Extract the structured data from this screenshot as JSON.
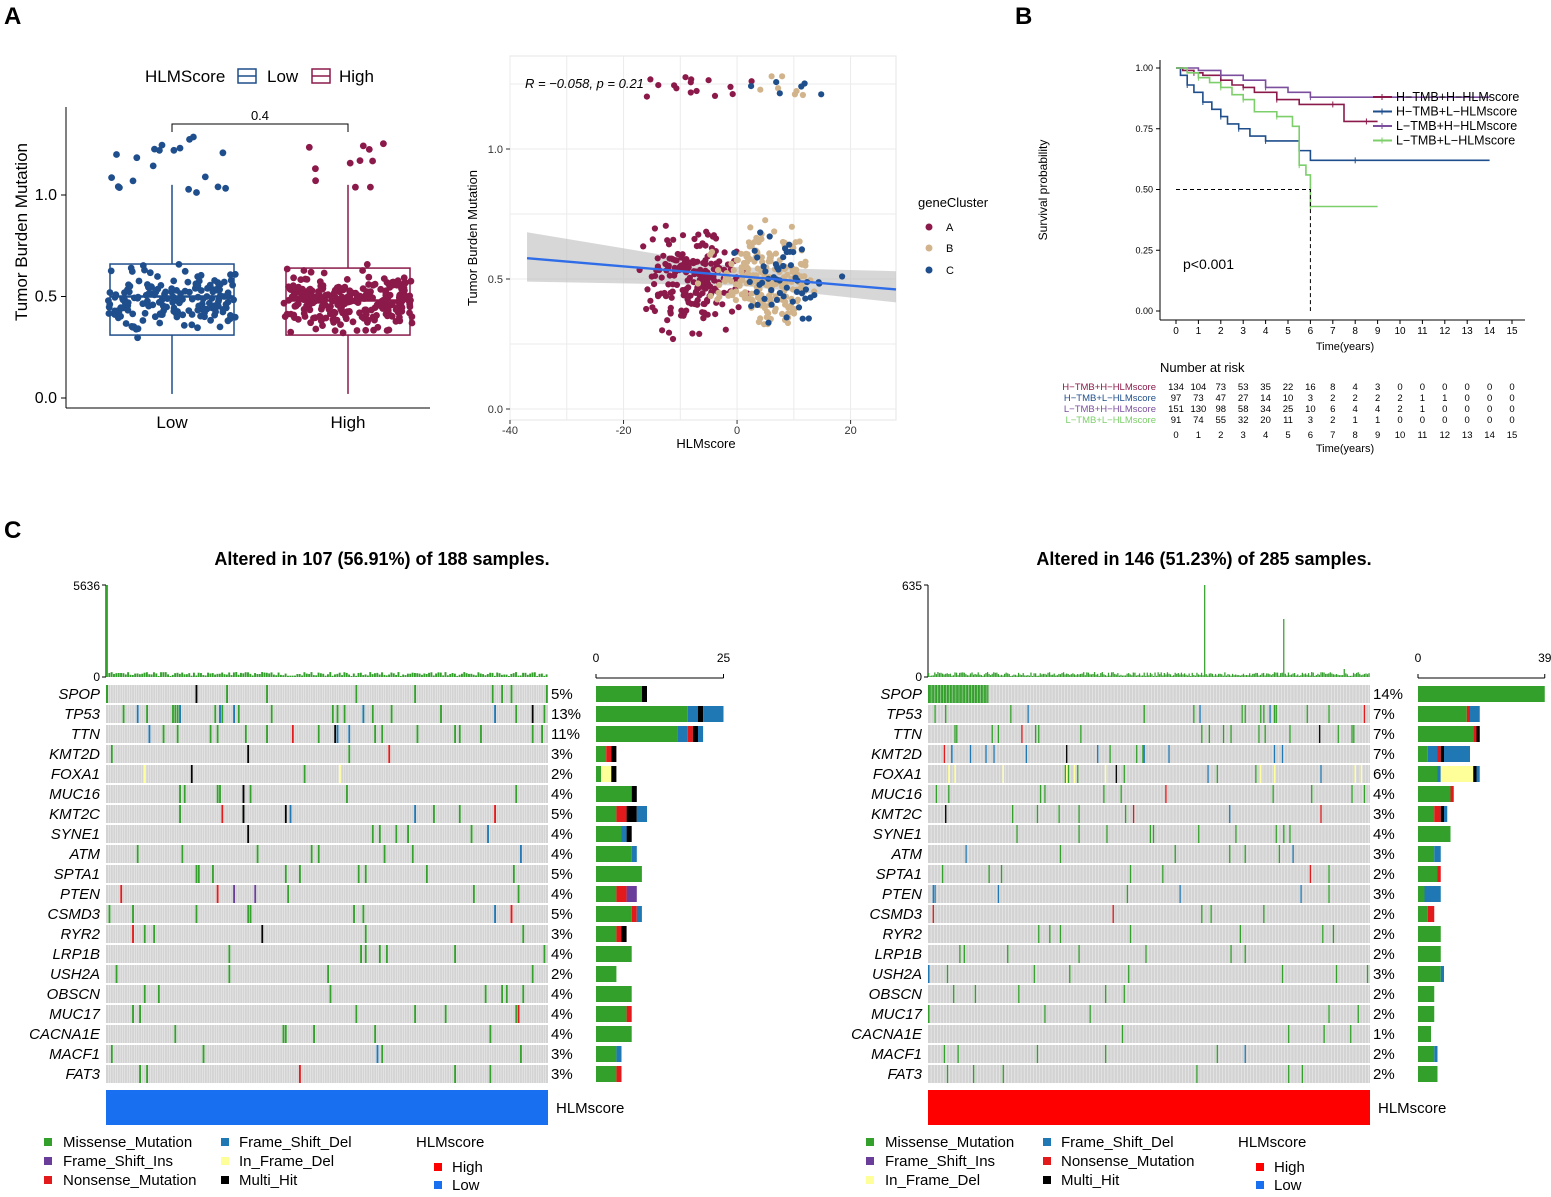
{
  "panel_labels": {
    "a": "A",
    "b": "B",
    "c": "C"
  },
  "colors": {
    "low": "#1f4e8c",
    "high": "#8b1a4a",
    "clusterA": "#8b1a4a",
    "clusterB": "#d2b48c",
    "clusterC": "#1f4e8c",
    "km1": "#8b1a4a",
    "km2": "#1f4e8c",
    "km3": "#7b4f9e",
    "km4": "#7ccf6a",
    "missense": "#33a02c",
    "frameshift_del": "#1f78b4",
    "frameshift_ins": "#6a3d9a",
    "nonsense": "#e31a1c",
    "inframe_del": "#ffff99",
    "multi_hit": "#000000",
    "hlm_high": "#ff0000",
    "hlm_low": "#1870f0",
    "grid_bg": "#d3d3d3"
  },
  "chart_data": [
    {
      "type": "box",
      "id": "A1",
      "legend_title": "HLMScore",
      "legend": [
        "Low",
        "High"
      ],
      "categories": [
        "Low",
        "High"
      ],
      "ylabel": "Tumor Burden Mutation",
      "ylim": [
        -0.05,
        1.38
      ],
      "yticks": [
        "0.0",
        "0.5",
        "1.0"
      ],
      "pvalue": "0.4",
      "boxes": [
        {
          "name": "Low",
          "q1": 0.31,
          "median": 0.5,
          "q3": 0.66,
          "lower": 0.02,
          "upper": 1.05
        },
        {
          "name": "High",
          "q1": 0.31,
          "median": 0.48,
          "q3": 0.64,
          "lower": 0.02,
          "upper": 1.05
        }
      ]
    },
    {
      "type": "scatter",
      "id": "A2",
      "xlabel": "HLMscore",
      "ylabel": "Tumor Burden Mutation",
      "xlim": [
        -40,
        28
      ],
      "ylim": [
        -0.05,
        1.32
      ],
      "xticks": [
        "-40",
        "-20",
        "0",
        "20"
      ],
      "yticks": [
        "0.0",
        "0.5",
        "1.0"
      ],
      "annotation": "R = −0.058, p = 0.21",
      "legend_title": "geneCluster",
      "legend": [
        "A",
        "B",
        "C"
      ],
      "regression": {
        "x0": -37,
        "y0": 0.58,
        "x1": 28,
        "y1": 0.46
      }
    },
    {
      "type": "line",
      "id": "B",
      "xlabel": "Time(years)",
      "ylabel": "Survival probability",
      "xticks": [
        "0",
        "1",
        "2",
        "3",
        "4",
        "5",
        "6",
        "7",
        "8",
        "9",
        "10",
        "11",
        "12",
        "13",
        "14",
        "15"
      ],
      "yticks": [
        "0.00",
        "0.25",
        "0.50",
        "0.75",
        "1.00"
      ],
      "xlim": [
        0,
        15
      ],
      "ylim": [
        0,
        1
      ],
      "pvalue": "p<0.001",
      "series": [
        {
          "name": "H−TMB+H−HLMscore",
          "points": [
            [
              0,
              1
            ],
            [
              0.3,
              0.99
            ],
            [
              0.8,
              0.98
            ],
            [
              1.2,
              0.97
            ],
            [
              2,
              0.95
            ],
            [
              2.5,
              0.93
            ],
            [
              3,
              0.92
            ],
            [
              3.5,
              0.9
            ],
            [
              4.5,
              0.87
            ],
            [
              5.5,
              0.85
            ],
            [
              7,
              0.85
            ],
            [
              7.5,
              0.78
            ],
            [
              8.5,
              0.78
            ],
            [
              9,
              0.78
            ]
          ]
        },
        {
          "name": "H−TMB+L−HLMscore",
          "points": [
            [
              0,
              1
            ],
            [
              0.2,
              0.97
            ],
            [
              0.5,
              0.93
            ],
            [
              0.8,
              0.9
            ],
            [
              1.2,
              0.86
            ],
            [
              1.6,
              0.83
            ],
            [
              2,
              0.8
            ],
            [
              2.3,
              0.77
            ],
            [
              2.8,
              0.75
            ],
            [
              3.3,
              0.72
            ],
            [
              4,
              0.7
            ],
            [
              5,
              0.7
            ],
            [
              5.5,
              0.66
            ],
            [
              6,
              0.62
            ],
            [
              8,
              0.62
            ],
            [
              14,
              0.62
            ]
          ]
        },
        {
          "name": "L−TMB+H−HLMscore",
          "points": [
            [
              0,
              1
            ],
            [
              1,
              0.99
            ],
            [
              2,
              0.97
            ],
            [
              3,
              0.95
            ],
            [
              4,
              0.92
            ],
            [
              5,
              0.9
            ],
            [
              6,
              0.88
            ],
            [
              14,
              0.88
            ]
          ]
        },
        {
          "name": "L−TMB+L−HLMscore",
          "points": [
            [
              0,
              1
            ],
            [
              0.5,
              0.98
            ],
            [
              1,
              0.96
            ],
            [
              1.5,
              0.94
            ],
            [
              2,
              0.92
            ],
            [
              2.5,
              0.89
            ],
            [
              3,
              0.87
            ],
            [
              3.5,
              0.82
            ],
            [
              4.5,
              0.8
            ],
            [
              5.2,
              0.76
            ],
            [
              5.5,
              0.6
            ],
            [
              5.8,
              0.56
            ],
            [
              6,
              0.43
            ],
            [
              9,
              0.43
            ]
          ]
        }
      ],
      "median_line": {
        "x": 6,
        "y": 0.5
      },
      "risk_table": {
        "title": "Number at risk",
        "rows": [
          {
            "name": "H−TMB+H−HLMscore",
            "values": [
              "134",
              "104",
              "73",
              "53",
              "35",
              "22",
              "16",
              "8",
              "4",
              "3",
              "0",
              "0",
              "0",
              "0",
              "0",
              "0"
            ]
          },
          {
            "name": "H−TMB+L−HLMscore",
            "values": [
              "97",
              "73",
              "47",
              "27",
              "14",
              "10",
              "3",
              "2",
              "2",
              "2",
              "2",
              "1",
              "1",
              "0",
              "0",
              "0"
            ]
          },
          {
            "name": "L−TMB+H−HLMscore",
            "values": [
              "151",
              "130",
              "98",
              "58",
              "34",
              "25",
              "10",
              "6",
              "4",
              "4",
              "2",
              "1",
              "0",
              "0",
              "0",
              "0"
            ]
          },
          {
            "name": "L−TMB+L−HLMscore",
            "values": [
              "91",
              "74",
              "55",
              "32",
              "20",
              "11",
              "3",
              "2",
              "1",
              "1",
              "0",
              "0",
              "0",
              "0",
              "0",
              "0"
            ]
          }
        ],
        "xlabel": "Time(years)"
      }
    },
    {
      "type": "heatmap",
      "id": "C-left",
      "title": "Altered in 107 (56.91%) of 188 samples.",
      "tmb_max": "5636",
      "tmb_zero": "0",
      "bar_axis": [
        "0",
        "25"
      ],
      "bar_max": 25,
      "score_label": "HLMscore",
      "score_color_key": "hlm_low",
      "genes": [
        {
          "name": "SPOP",
          "pct": "5%",
          "counts": [
            9,
            0,
            0,
            0,
            0,
            1
          ]
        },
        {
          "name": "TP53",
          "pct": "13%",
          "counts": [
            18,
            2,
            0,
            0,
            0,
            1,
            4
          ]
        },
        {
          "name": "TTN",
          "pct": "11%",
          "counts": [
            16,
            2,
            1,
            0,
            0,
            1,
            1
          ]
        },
        {
          "name": "KMT2D",
          "pct": "3%",
          "counts": [
            2,
            0,
            1,
            0,
            0,
            1,
            0
          ]
        },
        {
          "name": "FOXA1",
          "pct": "2%",
          "counts": [
            1,
            0,
            0,
            0,
            2,
            1,
            0
          ]
        },
        {
          "name": "MUC16",
          "pct": "4%",
          "counts": [
            7,
            0,
            0,
            0,
            0,
            1,
            0
          ]
        },
        {
          "name": "KMT2C",
          "pct": "5%",
          "counts": [
            4,
            0,
            2,
            0,
            0,
            2,
            2
          ]
        },
        {
          "name": "SYNE1",
          "pct": "4%",
          "counts": [
            5,
            1,
            0,
            0,
            0,
            1,
            0
          ]
        },
        {
          "name": "ATM",
          "pct": "4%",
          "counts": [
            7,
            0,
            0,
            0,
            0,
            0,
            1
          ]
        },
        {
          "name": "SPTA1",
          "pct": "5%",
          "counts": [
            9,
            0,
            0,
            0,
            0,
            0,
            0
          ]
        },
        {
          "name": "PTEN",
          "pct": "4%",
          "counts": [
            4,
            0,
            2,
            0,
            0,
            0,
            0,
            2
          ]
        },
        {
          "name": "CSMD3",
          "pct": "5%",
          "counts": [
            7,
            0,
            1,
            0,
            0,
            0,
            1
          ]
        },
        {
          "name": "RYR2",
          "pct": "3%",
          "counts": [
            4,
            0,
            1,
            0,
            0,
            1,
            0
          ]
        },
        {
          "name": "LRP1B",
          "pct": "4%",
          "counts": [
            7,
            0,
            0,
            0,
            0,
            0,
            0
          ]
        },
        {
          "name": "USH2A",
          "pct": "2%",
          "counts": [
            4,
            0,
            0,
            0,
            0,
            0,
            0
          ]
        },
        {
          "name": "OBSCN",
          "pct": "4%",
          "counts": [
            7,
            0,
            0,
            0,
            0,
            0,
            0
          ]
        },
        {
          "name": "MUC17",
          "pct": "4%",
          "counts": [
            6,
            0,
            1,
            0,
            0,
            0,
            0
          ]
        },
        {
          "name": "CACNA1E",
          "pct": "4%",
          "counts": [
            7,
            0,
            0,
            0,
            0,
            0,
            0
          ]
        },
        {
          "name": "MACF1",
          "pct": "3%",
          "counts": [
            4,
            0,
            0,
            0,
            0,
            0,
            1
          ]
        },
        {
          "name": "FAT3",
          "pct": "3%",
          "counts": [
            4,
            0,
            1,
            0,
            0,
            0,
            0
          ]
        }
      ]
    },
    {
      "type": "heatmap",
      "id": "C-right",
      "title": "Altered in 146 (51.23%) of 285 samples.",
      "tmb_max": "635",
      "tmb_zero": "0",
      "bar_axis": [
        "0",
        "39"
      ],
      "bar_max": 39,
      "score_label": "HLMscore",
      "score_color_key": "hlm_high",
      "genes": [
        {
          "name": "SPOP",
          "pct": "14%",
          "counts": [
            39,
            0,
            0,
            0,
            0,
            0,
            0
          ]
        },
        {
          "name": "TP53",
          "pct": "7%",
          "counts": [
            15,
            0,
            1,
            0,
            0,
            0,
            3
          ]
        },
        {
          "name": "TTN",
          "pct": "7%",
          "counts": [
            17,
            0,
            1,
            0,
            0,
            1,
            0
          ]
        },
        {
          "name": "KMT2D",
          "pct": "7%",
          "counts": [
            3,
            3,
            1,
            0,
            0,
            1,
            8
          ]
        },
        {
          "name": "FOXA1",
          "pct": "6%",
          "counts": [
            6,
            1,
            0,
            0,
            10,
            1,
            1
          ]
        },
        {
          "name": "MUC16",
          "pct": "4%",
          "counts": [
            10,
            0,
            1,
            0,
            0,
            0,
            0
          ]
        },
        {
          "name": "KMT2C",
          "pct": "3%",
          "counts": [
            5,
            0,
            2,
            0,
            0,
            1,
            1
          ]
        },
        {
          "name": "SYNE1",
          "pct": "4%",
          "counts": [
            10,
            0,
            0,
            0,
            0,
            0,
            0
          ]
        },
        {
          "name": "ATM",
          "pct": "3%",
          "counts": [
            5,
            0,
            0,
            0,
            0,
            0,
            2
          ]
        },
        {
          "name": "SPTA1",
          "pct": "2%",
          "counts": [
            6,
            0,
            1,
            0,
            0,
            0,
            0
          ]
        },
        {
          "name": "PTEN",
          "pct": "3%",
          "counts": [
            2,
            2,
            0,
            0,
            0,
            0,
            3
          ]
        },
        {
          "name": "CSMD3",
          "pct": "2%",
          "counts": [
            3,
            0,
            2,
            0,
            0,
            0,
            0
          ]
        },
        {
          "name": "RYR2",
          "pct": "2%",
          "counts": [
            7,
            0,
            0,
            0,
            0,
            0,
            0
          ]
        },
        {
          "name": "LRP1B",
          "pct": "2%",
          "counts": [
            7,
            0,
            0,
            0,
            0,
            0,
            0
          ]
        },
        {
          "name": "USH2A",
          "pct": "3%",
          "counts": [
            7,
            0,
            0,
            0,
            0,
            0,
            1
          ]
        },
        {
          "name": "OBSCN",
          "pct": "2%",
          "counts": [
            5,
            0,
            0,
            0,
            0,
            0,
            0
          ]
        },
        {
          "name": "MUC17",
          "pct": "2%",
          "counts": [
            5,
            0,
            0,
            0,
            0,
            0,
            0
          ]
        },
        {
          "name": "CACNA1E",
          "pct": "1%",
          "counts": [
            4,
            0,
            0,
            0,
            0,
            0,
            0
          ]
        },
        {
          "name": "MACF1",
          "pct": "2%",
          "counts": [
            5,
            0,
            0,
            0,
            0,
            0,
            1
          ]
        },
        {
          "name": "FAT3",
          "pct": "2%",
          "counts": [
            6,
            0,
            0,
            0,
            0,
            0,
            0
          ]
        }
      ]
    }
  ],
  "mutation_legend": {
    "left": {
      "col1": [
        "Missense_Mutation",
        "Frame_Shift_Ins",
        "Nonsense_Mutation"
      ],
      "col1_keys": [
        "missense",
        "frameshift_ins",
        "nonsense"
      ],
      "col2": [
        "Frame_Shift_Del",
        "In_Frame_Del",
        "Multi_Hit"
      ],
      "col2_keys": [
        "frameshift_del",
        "inframe_del",
        "multi_hit"
      ]
    },
    "right": {
      "col1": [
        "Missense_Mutation",
        "Frame_Shift_Ins",
        "In_Frame_Del"
      ],
      "col1_keys": [
        "missense",
        "frameshift_ins",
        "inframe_del"
      ],
      "col2": [
        "Frame_Shift_Del",
        "Nonsense_Mutation",
        "Multi_Hit"
      ],
      "col2_keys": [
        "frameshift_del",
        "nonsense",
        "multi_hit"
      ]
    },
    "score_title": "HLMscore",
    "score_items": [
      "High",
      "Low"
    ]
  }
}
